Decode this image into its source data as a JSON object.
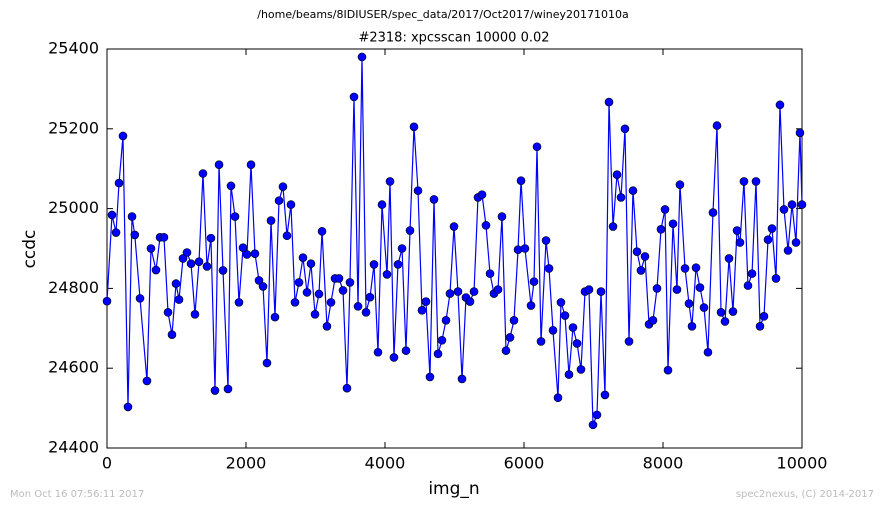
{
  "chart_data": {
    "type": "line",
    "title": "/home/beams/8IDIUSER/spec_data/2017/Oct2017/winey20171010a",
    "subtitle": "#2318: xpcsscan 10000 0.02",
    "x_label": "img_n",
    "y_label": "ccdc",
    "xlim": [
      0,
      10000
    ],
    "ylim": [
      24400,
      25400
    ],
    "xticks": [
      0,
      2000,
      4000,
      6000,
      8000,
      10000
    ],
    "yticks": [
      24400,
      24600,
      24800,
      25000,
      25200,
      25400
    ],
    "grid": false,
    "series": [
      {
        "name": "ccdc",
        "color": "#0000ff",
        "x": [
          0,
          72,
          130,
          173,
          230,
          302,
          360,
          400,
          475,
          575,
          633,
          705,
          763,
          820,
          878,
          935,
          993,
          1036,
          1094,
          1151,
          1209,
          1266,
          1324,
          1381,
          1439,
          1496,
          1554,
          1612,
          1669,
          1741,
          1784,
          1842,
          1899,
          1957,
          2014,
          2072,
          2129,
          2187,
          2245,
          2302,
          2360,
          2417,
          2475,
          2532,
          2590,
          2647,
          2705,
          2763,
          2820,
          2878,
          2935,
          2993,
          3050,
          3094,
          3165,
          3223,
          3281,
          3338,
          3396,
          3453,
          3496,
          3554,
          3612,
          3669,
          3727,
          3784,
          3842,
          3899,
          3957,
          4029,
          4072,
          4129,
          4187,
          4245,
          4302,
          4360,
          4417,
          4475,
          4532,
          4590,
          4647,
          4705,
          4763,
          4820,
          4878,
          4935,
          4993,
          5050,
          5108,
          5165,
          5223,
          5281,
          5338,
          5396,
          5453,
          5511,
          5568,
          5626,
          5683,
          5741,
          5799,
          5856,
          5914,
          5957,
          6014,
          6101,
          6144,
          6187,
          6245,
          6317,
          6360,
          6417,
          6489,
          6532,
          6590,
          6647,
          6705,
          6763,
          6820,
          6878,
          6935,
          6993,
          7050,
          7108,
          7165,
          7223,
          7281,
          7338,
          7396,
          7453,
          7511,
          7568,
          7626,
          7683,
          7741,
          7799,
          7856,
          7914,
          7971,
          8029,
          8072,
          8144,
          8201,
          8244,
          8317,
          8374,
          8417,
          8475,
          8532,
          8590,
          8647,
          8719,
          8777,
          8835,
          8892,
          8950,
          9007,
          9065,
          9108,
          9165,
          9223,
          9281,
          9338,
          9396,
          9453,
          9511,
          9568,
          9626,
          9683,
          9741,
          9799,
          9856,
          9914,
          9971,
          10000
        ],
        "values": [
          24768,
          24984,
          24940,
          25064,
          25182,
          24503,
          24980,
          24934,
          24775,
          24568,
          24900,
          24846,
          24928,
          24928,
          24740,
          24684,
          24812,
          24772,
          24875,
          24890,
          24862,
          24735,
          24867,
          25088,
          24855,
          24926,
          24544,
          25110,
          24845,
          24548,
          25057,
          24980,
          24765,
          24902,
          24885,
          25110,
          24887,
          24820,
          24805,
          24613,
          24970,
          24728,
          25020,
          25055,
          24932,
          25010,
          24765,
          24815,
          24877,
          24790,
          24862,
          24735,
          24786,
          24943,
          24705,
          24765,
          24825,
          24825,
          24795,
          24550,
          24815,
          25280,
          24755,
          25380,
          24740,
          24778,
          24860,
          24640,
          25010,
          24835,
          25068,
          24627,
          24860,
          24900,
          24644,
          24945,
          25205,
          25045,
          24745,
          24767,
          24578,
          25023,
          24636,
          24670,
          24720,
          24787,
          24955,
          24792,
          24573,
          24777,
          24767,
          24792,
          25028,
          25035,
          24958,
          24837,
          24787,
          24797,
          24980,
          24644,
          24677,
          24720,
          24897,
          25070,
          24900,
          24757,
          24817,
          25155,
          24667,
          24920,
          24850,
          24695,
          24526,
          24765,
          24732,
          24584,
          24702,
          24662,
          24597,
          24792,
          24797,
          24458,
          24483,
          24792,
          24533,
          25267,
          24955,
          25085,
          25028,
          25200,
          24667,
          25045,
          24892,
          24845,
          24880,
          24710,
          24720,
          24800,
          24948,
          24998,
          24595,
          24962,
          24797,
          25060,
          24850,
          24762,
          24705,
          24852,
          24802,
          24752,
          24640,
          24990,
          25208,
          24740,
          24717,
          24875,
          24742,
          24945,
          24915,
          25068,
          24807,
          24837,
          25068,
          24705,
          24730,
          24922,
          24950,
          24825,
          25260,
          24998,
          24895,
          25010,
          24915,
          25190,
          25010
        ]
      }
    ]
  },
  "footer": {
    "timestamp": "Mon Oct 16 07:56:11 2017",
    "credit": "spec2nexus, (C) 2014-2017"
  }
}
